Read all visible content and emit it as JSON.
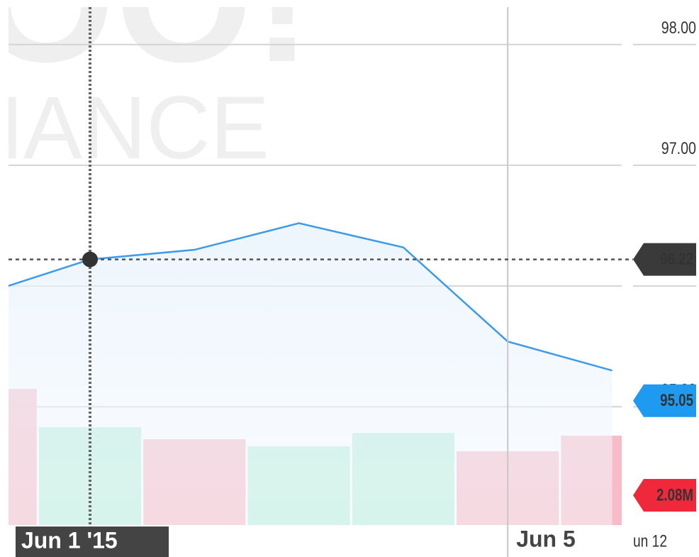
{
  "chart_data": {
    "type": "line",
    "watermark": [
      "YAHOO!",
      "FINANCE"
    ],
    "categories": [
      null,
      "Jun 1 '15",
      null,
      null,
      null,
      "Jun 5",
      null
    ],
    "extra_x_tick_label": "un 12",
    "crosshair": 1,
    "values": [
      95.94,
      96.22,
      96.3,
      96.52,
      96.32,
      95.54,
      95.3
    ],
    "color": "#3d9be9",
    "last_price": 95.05,
    "ylim": [
      94.02,
      98.31
    ],
    "yticks": [
      {
        "value": 95,
        "label": "95.00"
      },
      {
        "value": 96,
        "label": "96.00"
      },
      {
        "value": 97,
        "label": "97.00"
      },
      {
        "value": 98,
        "label": "98.00"
      }
    ],
    "grid": true,
    "volume": {
      "values": [
        9.5,
        6.83,
        5.99,
        5.5,
        6.44,
        5.15,
        6.24
      ],
      "colors": [
        "#f8bcc8",
        "#bcefdb",
        "#f8bcc8",
        "#bcefdb",
        "#bcefdb",
        "#f8bcc8",
        "#f8bcc8"
      ]
    },
    "y2lim": [
      0,
      10
    ],
    "volume_tag": {
      "value": 2.08,
      "label": "2.08M"
    }
  }
}
